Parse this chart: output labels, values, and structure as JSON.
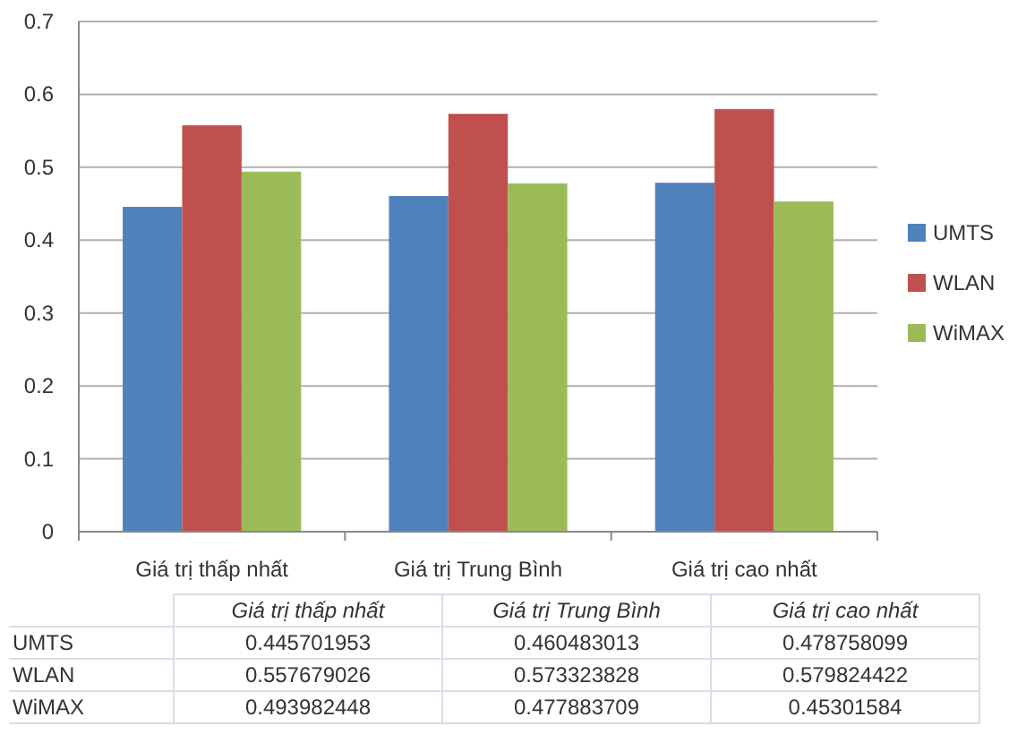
{
  "chart_data": {
    "type": "bar",
    "categories": [
      "Giá trị thấp nhất",
      "Giá trị Trung Bình",
      "Giá trị cao nhất"
    ],
    "series": [
      {
        "name": "UMTS",
        "color": "#4f81bd",
        "values": [
          0.445701953,
          0.460483013,
          0.478758099
        ]
      },
      {
        "name": "WLAN",
        "color": "#c0504d",
        "values": [
          0.557679026,
          0.573323828,
          0.579824422
        ]
      },
      {
        "name": "WiMAX",
        "color": "#9bbb59",
        "values": [
          0.493982448,
          0.477883709,
          0.45301584
        ]
      }
    ],
    "ylim": [
      0,
      0.7
    ],
    "yticks": [
      0,
      0.1,
      0.2,
      0.3,
      0.4,
      0.5,
      0.6,
      0.7
    ],
    "grid": "y",
    "legend": "right",
    "data_labels": true
  }
}
